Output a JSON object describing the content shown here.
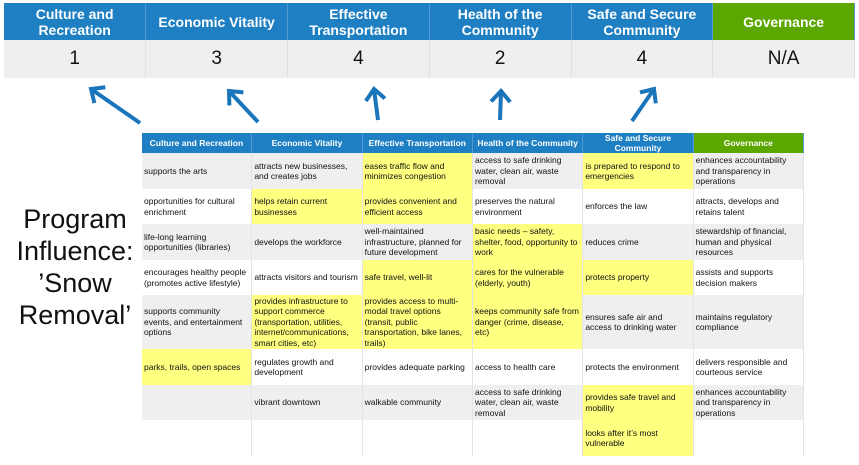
{
  "summary": {
    "categories": [
      "Culture and Recreation",
      "Economic Vitality",
      "Effective Transportation",
      "Health of the Community",
      "Safe and Secure Community",
      "Governance"
    ],
    "scores": [
      "1",
      "3",
      "4",
      "2",
      "4",
      "N/A"
    ]
  },
  "caption": {
    "lines": [
      "Program",
      "Influence:",
      "’Snow",
      "Removal’"
    ]
  },
  "colors": {
    "header_blue": "#1e7fc2",
    "governance_green": "#5ba700",
    "highlight_yellow": "#ffff80",
    "arrow_blue": "#1a75bb"
  },
  "table": {
    "headers": [
      "Culture and Recreation",
      "Economic Vitality",
      "Effective Transportation",
      "Health of the Community",
      "Safe and Secure Community",
      "Governance"
    ],
    "rows": [
      [
        {
          "t": "supports the arts"
        },
        {
          "t": "attracts new businesses, and creates jobs"
        },
        {
          "t": "eases traffic flow and minimizes congestion",
          "hl": true
        },
        {
          "t": "access to safe drinking water, clean air, waste removal"
        },
        {
          "t": "is prepared to respond to emergencies",
          "hl": true
        },
        {
          "t": "enhances accountability and transparency in operations"
        }
      ],
      [
        {
          "t": "opportunities for cultural enrichment"
        },
        {
          "t": "helps retain current businesses",
          "hl": true
        },
        {
          "t": "provides convenient and efficient access",
          "hl": true
        },
        {
          "t": "preserves the natural environment"
        },
        {
          "t": "enforces the law"
        },
        {
          "t": "attracts, develops and retains talent"
        }
      ],
      [
        {
          "t": "life-long learning opportunities (libraries)"
        },
        {
          "t": "develops the workforce"
        },
        {
          "t": "well-maintained infrastructure, planned for future development"
        },
        {
          "t": "basic needs – safety, shelter, food, opportunity to work",
          "hl": true
        },
        {
          "t": "reduces crime"
        },
        {
          "t": "stewardship of financial, human and physical resources"
        }
      ],
      [
        {
          "t": "encourages healthy people (promotes active lifestyle)"
        },
        {
          "t": "attracts visitors and tourism"
        },
        {
          "t": "safe travel, well-lit",
          "hl": true
        },
        {
          "t": "cares for the vulnerable (elderly, youth)",
          "hl": true
        },
        {
          "t": "protects property",
          "hl": true
        },
        {
          "t": "assists and supports decision makers"
        }
      ],
      [
        {
          "t": "supports community events, and entertainment options"
        },
        {
          "t": "provides infrastructure to support commerce (transportation, utilities, internet/communications, smart cities, etc)",
          "hl": true
        },
        {
          "t": "provides access to multi-modal travel options (transit, public transportation, bike lanes, trails)",
          "hl": true
        },
        {
          "t": "keeps community safe from danger (crime, disease, etc)",
          "hl": true
        },
        {
          "t": "ensures safe air and access to drinking water"
        },
        {
          "t": "maintains regulatory compliance"
        }
      ],
      [
        {
          "t": "parks, trails, open spaces",
          "hl": true
        },
        {
          "t": "regulates growth and development"
        },
        {
          "t": "provides adequate parking"
        },
        {
          "t": "access to health care"
        },
        {
          "t": "protects the environment"
        },
        {
          "t": "delivers responsible and courteous service"
        }
      ],
      [
        {
          "t": ""
        },
        {
          "t": "vibrant downtown"
        },
        {
          "t": "walkable community"
        },
        {
          "t": "access to safe drinking water, clean air, waste removal"
        },
        {
          "t": "provides safe travel and mobility",
          "hl": true
        },
        {
          "t": "enhances accountability and transparency in operations"
        }
      ],
      [
        {
          "t": ""
        },
        {
          "t": ""
        },
        {
          "t": ""
        },
        {
          "t": ""
        },
        {
          "t": "looks after it’s most vulnerable",
          "hl": true
        },
        {
          "t": ""
        }
      ]
    ]
  }
}
